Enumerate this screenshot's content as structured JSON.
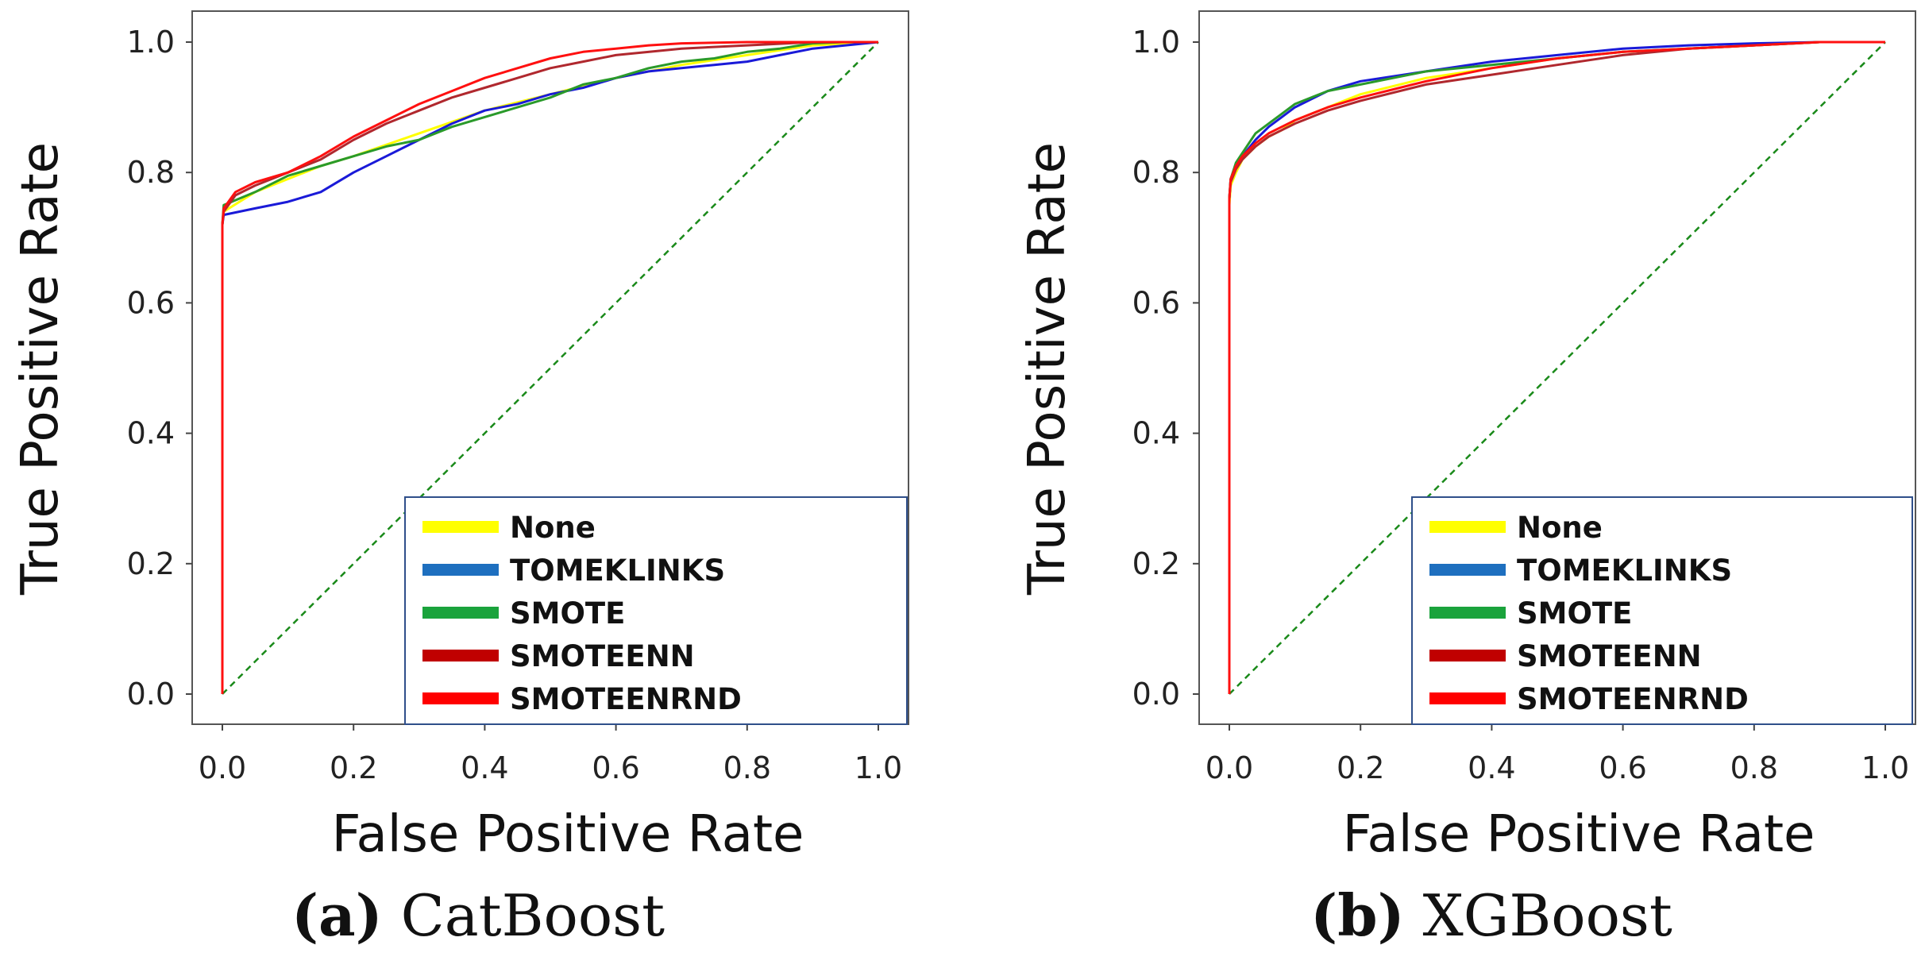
{
  "colors": {
    "None": "#ffff00",
    "TOMEKLINKS": "#1e6fbf",
    "SMOTE": "#1aa33c",
    "SMOTEENN": "#c00000",
    "SMOTEENRND": "#ff0000",
    "line_TOMEKLINKS": "#1a1ad8",
    "line_SMOTE": "#2a9a2a",
    "line_SMOTEENN": "#b0282e",
    "line_SMOTEENRND": "#ff1010",
    "diagonal": "#1a8a1a",
    "frame": "#555555",
    "legend_frame": "#2f4f8a"
  },
  "captions": [
    {
      "label": "(a)",
      "text": " CatBoost"
    },
    {
      "label": "(b)",
      "text": " XGBoost"
    }
  ],
  "chart_data": [
    {
      "type": "line",
      "title": "CatBoost",
      "xlabel": "False Positive Rate",
      "ylabel": "True Positive Rate",
      "xlim": [
        0.0,
        1.0
      ],
      "ylim": [
        0.0,
        1.0
      ],
      "xticks": [
        "0.0",
        "0.2",
        "0.4",
        "0.6",
        "0.8",
        "1.0"
      ],
      "yticks": [
        "0.0",
        "0.2",
        "0.4",
        "0.6",
        "0.8",
        "1.0"
      ],
      "grid": false,
      "legend": "bottom-right",
      "reference_line": {
        "x": [
          0,
          1
        ],
        "y": [
          0,
          1
        ],
        "style": "dashed"
      },
      "series": [
        {
          "name": "None",
          "x": [
            0,
            0,
            0.002,
            0.05,
            0.1,
            0.15,
            0.2,
            0.3,
            0.4,
            0.5,
            0.6,
            0.7,
            0.8,
            0.9,
            1.0
          ],
          "y": [
            0,
            0.72,
            0.74,
            0.77,
            0.79,
            0.81,
            0.825,
            0.86,
            0.895,
            0.92,
            0.945,
            0.965,
            0.98,
            0.995,
            1.0
          ]
        },
        {
          "name": "TOMEKLINKS",
          "x": [
            0,
            0,
            0.002,
            0.05,
            0.1,
            0.15,
            0.2,
            0.25,
            0.3,
            0.35,
            0.4,
            0.45,
            0.5,
            0.55,
            0.6,
            0.65,
            0.7,
            0.75,
            0.8,
            0.85,
            0.9,
            0.95,
            1.0
          ],
          "y": [
            0,
            0.72,
            0.735,
            0.745,
            0.755,
            0.77,
            0.8,
            0.825,
            0.85,
            0.875,
            0.895,
            0.905,
            0.92,
            0.93,
            0.945,
            0.955,
            0.96,
            0.965,
            0.97,
            0.98,
            0.99,
            0.995,
            1.0
          ]
        },
        {
          "name": "SMOTE",
          "x": [
            0,
            0,
            0.002,
            0.05,
            0.1,
            0.15,
            0.2,
            0.25,
            0.3,
            0.35,
            0.4,
            0.45,
            0.5,
            0.55,
            0.6,
            0.65,
            0.7,
            0.75,
            0.8,
            0.85,
            0.9,
            0.95,
            1.0
          ],
          "y": [
            0,
            0.72,
            0.75,
            0.77,
            0.795,
            0.81,
            0.825,
            0.84,
            0.85,
            0.87,
            0.885,
            0.9,
            0.915,
            0.935,
            0.945,
            0.96,
            0.97,
            0.975,
            0.985,
            0.99,
            0.998,
            1.0,
            1.0
          ]
        },
        {
          "name": "SMOTEENN",
          "x": [
            0,
            0,
            0.002,
            0.02,
            0.05,
            0.1,
            0.15,
            0.2,
            0.25,
            0.3,
            0.35,
            0.4,
            0.45,
            0.5,
            0.55,
            0.6,
            0.7,
            0.8,
            0.9,
            1.0
          ],
          "y": [
            0,
            0.72,
            0.74,
            0.765,
            0.78,
            0.8,
            0.82,
            0.85,
            0.875,
            0.895,
            0.915,
            0.93,
            0.945,
            0.96,
            0.97,
            0.98,
            0.99,
            0.995,
            1.0,
            1.0
          ]
        },
        {
          "name": "SMOTEENRND",
          "x": [
            0,
            0,
            0.002,
            0.02,
            0.05,
            0.1,
            0.15,
            0.2,
            0.25,
            0.3,
            0.35,
            0.4,
            0.45,
            0.5,
            0.55,
            0.6,
            0.65,
            0.7,
            0.8,
            0.9,
            1.0
          ],
          "y": [
            0,
            0.72,
            0.745,
            0.77,
            0.785,
            0.8,
            0.825,
            0.855,
            0.88,
            0.905,
            0.925,
            0.945,
            0.96,
            0.975,
            0.985,
            0.99,
            0.995,
            0.998,
            1.0,
            1.0,
            1.0
          ]
        }
      ]
    },
    {
      "type": "line",
      "title": "XGBoost",
      "xlabel": "False Positive Rate",
      "ylabel": "True Positive Rate",
      "xlim": [
        0.0,
        1.0
      ],
      "ylim": [
        0.0,
        1.0
      ],
      "xticks": [
        "0.0",
        "0.2",
        "0.4",
        "0.6",
        "0.8",
        "1.0"
      ],
      "yticks": [
        "0.0",
        "0.2",
        "0.4",
        "0.6",
        "0.8",
        "1.0"
      ],
      "grid": false,
      "legend": "bottom-right",
      "reference_line": {
        "x": [
          0,
          1
        ],
        "y": [
          0,
          1
        ],
        "style": "dashed"
      },
      "series": [
        {
          "name": "None",
          "x": [
            0,
            0,
            0.002,
            0.01,
            0.02,
            0.04,
            0.06,
            0.08,
            0.1,
            0.15,
            0.2,
            0.3,
            0.4,
            0.5,
            0.6,
            0.7,
            0.8,
            0.9,
            1.0
          ],
          "y": [
            0,
            0.75,
            0.78,
            0.8,
            0.82,
            0.84,
            0.855,
            0.865,
            0.88,
            0.9,
            0.92,
            0.945,
            0.96,
            0.975,
            0.985,
            0.99,
            0.995,
            1.0,
            1.0
          ]
        },
        {
          "name": "TOMEKLINKS",
          "x": [
            0,
            0,
            0.002,
            0.01,
            0.02,
            0.04,
            0.06,
            0.08,
            0.1,
            0.15,
            0.2,
            0.3,
            0.4,
            0.5,
            0.6,
            0.7,
            0.8,
            0.9,
            1.0
          ],
          "y": [
            0,
            0.76,
            0.79,
            0.81,
            0.825,
            0.85,
            0.87,
            0.885,
            0.9,
            0.925,
            0.94,
            0.955,
            0.97,
            0.98,
            0.99,
            0.995,
            0.998,
            1.0,
            1.0
          ]
        },
        {
          "name": "SMOTE",
          "x": [
            0,
            0,
            0.002,
            0.01,
            0.02,
            0.04,
            0.06,
            0.08,
            0.1,
            0.15,
            0.2,
            0.3,
            0.4,
            0.5,
            0.6,
            0.7,
            0.8,
            0.9,
            1.0
          ],
          "y": [
            0,
            0.76,
            0.79,
            0.815,
            0.83,
            0.86,
            0.875,
            0.89,
            0.905,
            0.925,
            0.935,
            0.955,
            0.965,
            0.975,
            0.985,
            0.99,
            0.995,
            1.0,
            1.0
          ]
        },
        {
          "name": "SMOTEENN",
          "x": [
            0,
            0,
            0.002,
            0.01,
            0.02,
            0.04,
            0.06,
            0.08,
            0.1,
            0.15,
            0.2,
            0.3,
            0.4,
            0.5,
            0.6,
            0.7,
            0.8,
            0.9,
            1.0
          ],
          "y": [
            0,
            0.76,
            0.785,
            0.805,
            0.82,
            0.84,
            0.855,
            0.865,
            0.875,
            0.895,
            0.91,
            0.935,
            0.95,
            0.965,
            0.98,
            0.99,
            0.995,
            1.0,
            1.0
          ]
        },
        {
          "name": "SMOTEENRND",
          "x": [
            0,
            0,
            0.002,
            0.01,
            0.02,
            0.04,
            0.06,
            0.08,
            0.1,
            0.15,
            0.2,
            0.3,
            0.4,
            0.5,
            0.6,
            0.7,
            0.8,
            0.9,
            1.0
          ],
          "y": [
            0,
            0.76,
            0.79,
            0.81,
            0.825,
            0.845,
            0.86,
            0.87,
            0.88,
            0.9,
            0.915,
            0.94,
            0.96,
            0.975,
            0.985,
            0.99,
            0.995,
            1.0,
            1.0
          ]
        }
      ]
    }
  ]
}
